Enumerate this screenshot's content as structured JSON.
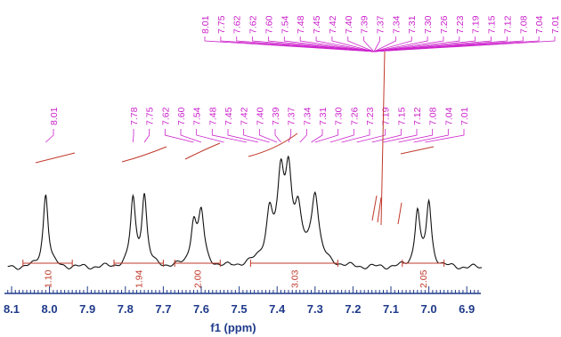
{
  "chart_data": {
    "type": "line",
    "xlabel": "f1 (ppm)",
    "xlim": [
      8.11,
      6.87
    ],
    "x_ticks": [
      "8.1",
      "8.0",
      "7.9",
      "7.8",
      "7.7",
      "7.6",
      "7.5",
      "7.4",
      "7.3",
      "7.2",
      "7.1",
      "7.0",
      "6.9"
    ],
    "peak_labels_top": [
      "8.01",
      "7.75",
      "7.62",
      "7.62",
      "7.60",
      "7.54",
      "7.48",
      "7.45",
      "7.42",
      "7.40",
      "7.39",
      "7.37",
      "7.34",
      "7.31",
      "7.30",
      "7.26",
      "7.23",
      "7.19",
      "7.15",
      "7.12",
      "7.08",
      "7.04",
      "7.01"
    ],
    "peak_labels_mid": [
      "8.01",
      "7.78",
      "7.75",
      "7.62",
      "7.60",
      "7.54",
      "7.48",
      "7.45",
      "7.42",
      "7.40",
      "7.39",
      "7.37",
      "7.34",
      "7.31",
      "7.30",
      "7.26",
      "7.23",
      "7.19",
      "7.15",
      "7.12",
      "7.08",
      "7.04",
      "7.01"
    ],
    "integrals": [
      {
        "label": "1.10",
        "from": 8.07,
        "to": 7.94
      },
      {
        "label": "1.94",
        "from": 7.83,
        "to": 7.7
      },
      {
        "label": "2.00",
        "from": 7.67,
        "to": 7.55
      },
      {
        "label": "3.03",
        "from": 7.47,
        "to": 7.24
      },
      {
        "label": "2.05",
        "from": 7.07,
        "to": 6.96
      }
    ],
    "peaks": [
      {
        "ppm": 8.01,
        "height": 0.83,
        "width": 0.008
      },
      {
        "ppm": 7.78,
        "height": 0.74,
        "width": 0.008
      },
      {
        "ppm": 7.75,
        "height": 0.79,
        "width": 0.008
      },
      {
        "ppm": 7.62,
        "height": 0.48,
        "width": 0.009
      },
      {
        "ppm": 7.6,
        "height": 0.58,
        "width": 0.009
      },
      {
        "ppm": 7.42,
        "height": 0.48,
        "width": 0.01
      },
      {
        "ppm": 7.39,
        "height": 0.8,
        "width": 0.01
      },
      {
        "ppm": 7.37,
        "height": 0.83,
        "width": 0.01
      },
      {
        "ppm": 7.345,
        "height": 0.42,
        "width": 0.01
      },
      {
        "ppm": 7.3,
        "height": 0.74,
        "width": 0.011
      },
      {
        "ppm": 7.03,
        "height": 0.63,
        "width": 0.008
      },
      {
        "ppm": 7.0,
        "height": 0.71,
        "width": 0.008
      }
    ],
    "colors": {
      "spectrum": "#111111",
      "labels": "#cc22cc",
      "integral": "#c0392b",
      "axis": "#1f3a8a"
    }
  }
}
